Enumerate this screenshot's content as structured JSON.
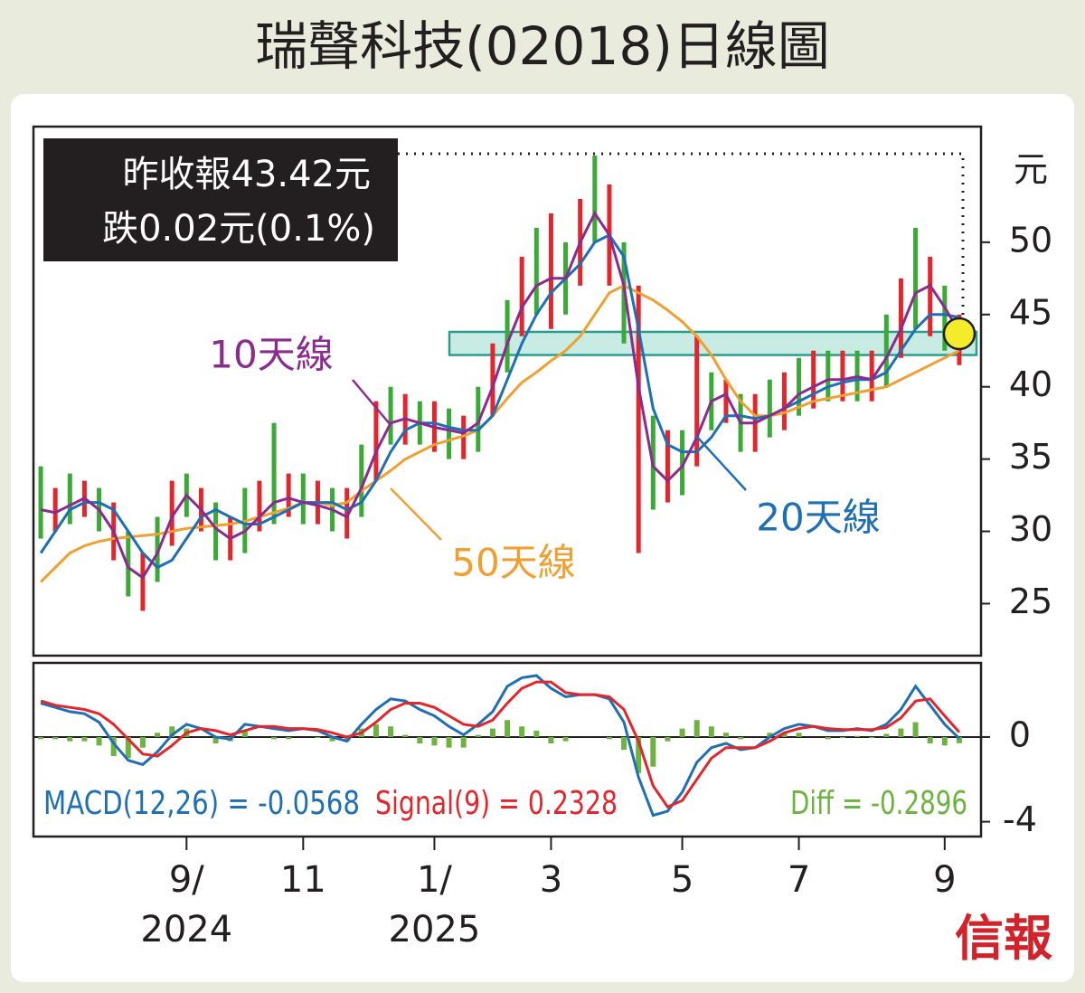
{
  "chart_data": {
    "type": "line",
    "title": "瑞聲科技(02018)日線圖",
    "info": [
      "昨收報43.42元",
      "跌0.02元(0.1%)"
    ],
    "unit": "元",
    "categories": [
      null,
      null,
      null,
      null,
      null,
      null,
      null,
      null,
      null,
      null,
      "9/",
      null,
      null,
      null,
      null,
      null,
      null,
      null,
      "11",
      null,
      null,
      null,
      null,
      null,
      null,
      null,
      null,
      "1/",
      null,
      null,
      null,
      null,
      null,
      null,
      null,
      "3",
      null,
      null,
      null,
      null,
      null,
      null,
      null,
      null,
      "5",
      null,
      null,
      null,
      null,
      null,
      null,
      null,
      "7",
      null,
      null,
      null,
      null,
      null,
      null,
      null,
      null,
      null,
      "9",
      null
    ],
    "years": [
      "2024",
      "2025"
    ],
    "ylim": [
      21.4,
      58
    ],
    "yticks": [
      25,
      30,
      35,
      40,
      45,
      50
    ],
    "range": {
      "color": "#e3262c",
      "high": [
        34.5,
        33,
        34,
        33.5,
        33,
        32,
        30,
        28.5,
        31,
        33.5,
        34,
        33,
        32,
        31,
        33,
        33.5,
        37.5,
        34,
        34,
        33.5,
        33,
        33,
        36,
        39,
        40,
        39.5,
        39,
        39,
        38.5,
        38,
        40,
        43,
        46,
        49,
        51,
        52,
        50,
        53,
        56,
        54,
        50,
        47,
        38,
        37,
        37,
        43.5,
        41,
        40.5,
        39.5,
        39.5,
        40.5,
        41,
        42,
        42.5,
        42.5,
        42.5,
        42.5,
        42.5,
        45,
        47.5,
        51,
        49,
        47,
        45
      ],
      "low": [
        29.5,
        30,
        30.5,
        31,
        30,
        28,
        25.5,
        24.5,
        26.5,
        29,
        31,
        30,
        28,
        28,
        28.5,
        30,
        30.5,
        31,
        30.5,
        30.5,
        30,
        29.5,
        31,
        33.5,
        36,
        36,
        36,
        35.5,
        35,
        35,
        35.5,
        38,
        41,
        43.5,
        45,
        44,
        45,
        47,
        50,
        47,
        43,
        28.5,
        31.5,
        32,
        32.5,
        34.5,
        37,
        37.5,
        35.5,
        35.5,
        36.5,
        37,
        38,
        38.5,
        39,
        39,
        39,
        39,
        40,
        42,
        44,
        43.5,
        42.5,
        41.5
      ]
    },
    "series": [
      {
        "name": "10天線",
        "color": "#8b2a8f",
        "values": [
          31.5,
          31.3,
          31.8,
          32.3,
          31.5,
          30,
          27.5,
          26.8,
          28.5,
          31,
          32.5,
          31.5,
          30.2,
          29.5,
          30,
          31,
          32,
          32.3,
          32,
          31.8,
          31.5,
          31,
          33,
          35.5,
          37.5,
          37.8,
          37.5,
          37.2,
          37,
          36.8,
          37.5,
          40,
          43,
          45.5,
          47,
          47.5,
          47.5,
          50,
          52,
          50.5,
          47,
          40,
          34.5,
          33.5,
          34.5,
          36.5,
          39,
          39.5,
          37.5,
          37.5,
          38,
          38.5,
          39.5,
          40,
          40.5,
          40.5,
          40.7,
          40.5,
          42,
          44,
          46.5,
          47,
          45.5,
          43.8
        ]
      },
      {
        "name": "20天線",
        "color": "#1f6fb5",
        "values": [
          28.5,
          30,
          31.5,
          32,
          32,
          31.5,
          30,
          28.5,
          27.5,
          28,
          29.5,
          31,
          31.5,
          31,
          30.5,
          30.5,
          31,
          31.5,
          32,
          32,
          32,
          31.5,
          32,
          33.5,
          35.5,
          37,
          37.5,
          37.5,
          37.2,
          37,
          37,
          38,
          40.5,
          43,
          45,
          46.5,
          47.5,
          48.5,
          50,
          50.5,
          49,
          44,
          38.5,
          36,
          35.5,
          35.5,
          36.5,
          38,
          38,
          37.8,
          38,
          38.5,
          39,
          39.5,
          40,
          40.3,
          40.5,
          40.5,
          41,
          42.5,
          44,
          45,
          45,
          44.8
        ]
      },
      {
        "name": "50天線",
        "color": "#f0a030",
        "values": [
          26.5,
          27.5,
          28.5,
          29,
          29.3,
          29.5,
          29.6,
          29.7,
          29.8,
          30,
          30.2,
          30.3,
          30.4,
          30.5,
          30.7,
          31,
          31.3,
          31.6,
          32,
          32,
          31.8,
          32,
          32.8,
          33.5,
          34.2,
          35,
          35.5,
          36,
          36.3,
          36.6,
          37,
          38,
          39.2,
          40.3,
          41,
          41.8,
          42.5,
          43.5,
          45,
          46.5,
          47,
          46.5,
          46,
          45.3,
          44.5,
          43.5,
          42.2,
          40.5,
          39,
          38,
          38,
          38.2,
          38.6,
          39,
          39.2,
          39.4,
          39.6,
          39.8,
          40,
          40.5,
          41,
          41.5,
          42,
          42.5
        ]
      }
    ],
    "highlight_band": [
      42.2,
      43.8
    ],
    "macd": {
      "ylim": [
        -4.7,
        3.5
      ],
      "yticks": [
        -4,
        0
      ],
      "series": [
        {
          "name": "MACD(12,26) = -0.0568",
          "color": "#1f6fb5",
          "values": [
            1.6,
            1.4,
            1.2,
            1.1,
            0.7,
            -0.3,
            -1.1,
            -1.3,
            -0.7,
            0.1,
            0.6,
            0.4,
            0,
            -0.1,
            0.6,
            0.5,
            0.4,
            0.3,
            0.4,
            0.3,
            0,
            -0.2,
            0.6,
            1.3,
            1.8,
            1.7,
            1.3,
            1,
            0.5,
            0.1,
            0.6,
            1.2,
            2.4,
            2.8,
            2.9,
            2.3,
            1.9,
            2,
            2,
            1.8,
            0.7,
            -1.9,
            -3.7,
            -3.5,
            -2.6,
            -1.2,
            -0.5,
            -0.3,
            -0.6,
            -0.5,
            0,
            0.4,
            0.6,
            0.5,
            0.3,
            0.3,
            0.4,
            0.3,
            0.6,
            1.3,
            2.4,
            1.5,
            0.6,
            -0.06
          ]
        },
        {
          "name": "Signal(9) = 0.2328",
          "color": "#e3262c",
          "values": [
            1.7,
            1.5,
            1.4,
            1.3,
            1.1,
            0.6,
            -0.1,
            -0.8,
            -0.9,
            -0.4,
            0.2,
            0.4,
            0.3,
            0.1,
            0.3,
            0.5,
            0.5,
            0.4,
            0.4,
            0.35,
            0.2,
            0,
            0.2,
            0.7,
            1.3,
            1.6,
            1.6,
            1.4,
            1,
            0.6,
            0.5,
            0.8,
            1.6,
            2.3,
            2.6,
            2.6,
            2.1,
            2,
            2,
            1.9,
            1.3,
            -0.2,
            -2.3,
            -3.3,
            -3,
            -2,
            -1,
            -0.5,
            -0.5,
            -0.5,
            -0.2,
            0.2,
            0.4,
            0.5,
            0.4,
            0.35,
            0.35,
            0.35,
            0.45,
            0.9,
            1.7,
            1.8,
            1.0,
            0.23
          ]
        },
        {
          "name": "Diff = -0.2896",
          "color": "#6cb33f",
          "type": "bar",
          "values": [
            -0.1,
            -0.1,
            -0.2,
            -0.2,
            -0.4,
            -0.9,
            -1.0,
            -0.5,
            0.2,
            0.5,
            0.4,
            0,
            -0.3,
            -0.2,
            0.3,
            0,
            -0.1,
            -0.1,
            0,
            -0.05,
            -0.2,
            -0.2,
            0.4,
            0.6,
            0.5,
            0.1,
            -0.3,
            -0.4,
            -0.5,
            -0.5,
            0.1,
            0.4,
            0.8,
            0.5,
            0.3,
            -0.3,
            -0.2,
            0,
            0,
            -0.1,
            -0.6,
            -1.7,
            -1.4,
            -0.2,
            0.4,
            0.8,
            0.5,
            0.2,
            -0.1,
            0,
            0.2,
            0.2,
            0.2,
            0,
            -0.1,
            -0.05,
            0.05,
            -0.05,
            0.15,
            0.4,
            0.7,
            -0.3,
            -0.4,
            -0.29
          ]
        }
      ]
    },
    "source": "信報"
  }
}
